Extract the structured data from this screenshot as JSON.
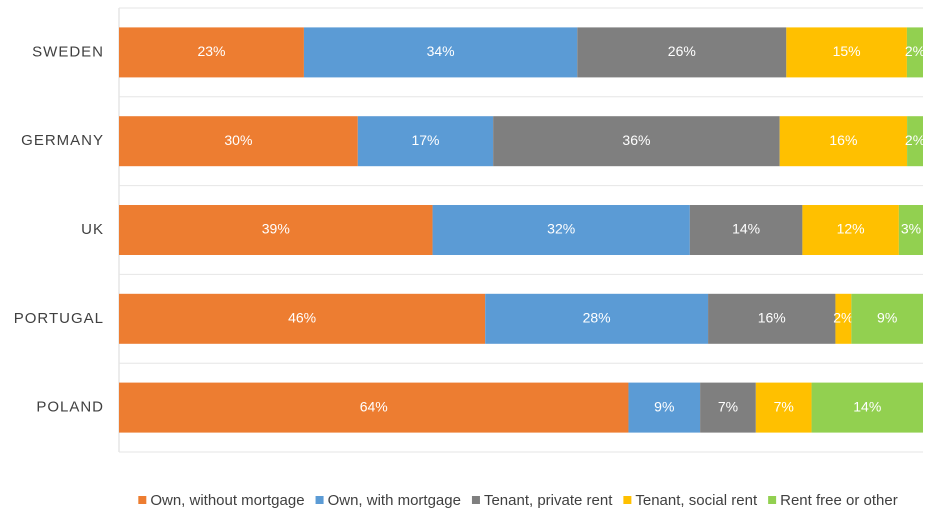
{
  "chart_data": {
    "type": "bar",
    "orientation": "horizontal",
    "stacked": true,
    "categories": [
      "SWEDEN",
      "GERMANY",
      "UK",
      "PORTUGAL",
      "POLAND"
    ],
    "series": [
      {
        "name": "Own, without mortgage",
        "color": "#ed7d31",
        "values": [
          23,
          30,
          39,
          46,
          64
        ],
        "value_labels": [
          "23%",
          "30%",
          "39%",
          "46%",
          "64%"
        ]
      },
      {
        "name": "Own, with mortgage",
        "color": "#5b9bd5",
        "values": [
          34,
          17,
          32,
          28,
          9
        ],
        "value_labels": [
          "34%",
          "17%",
          "32%",
          "28%",
          "9%"
        ]
      },
      {
        "name": "Tenant, private rent",
        "color": "#7f7f7f",
        "values": [
          26,
          36,
          14,
          16,
          7
        ],
        "value_labels": [
          "26%",
          "36%",
          "14%",
          "16%",
          "7%"
        ]
      },
      {
        "name": "Tenant, social rent",
        "color": "#ffc000",
        "values": [
          15,
          16,
          12,
          2,
          7
        ],
        "value_labels": [
          "15%",
          "16%",
          "12%",
          "2%",
          "7%"
        ]
      },
      {
        "name": "Rent free or other",
        "color": "#92d050",
        "values": [
          2,
          2,
          3,
          9,
          14
        ],
        "value_labels": [
          "2%",
          "2%",
          "3%",
          "9%",
          "14%"
        ]
      }
    ],
    "legend": "bottom"
  }
}
